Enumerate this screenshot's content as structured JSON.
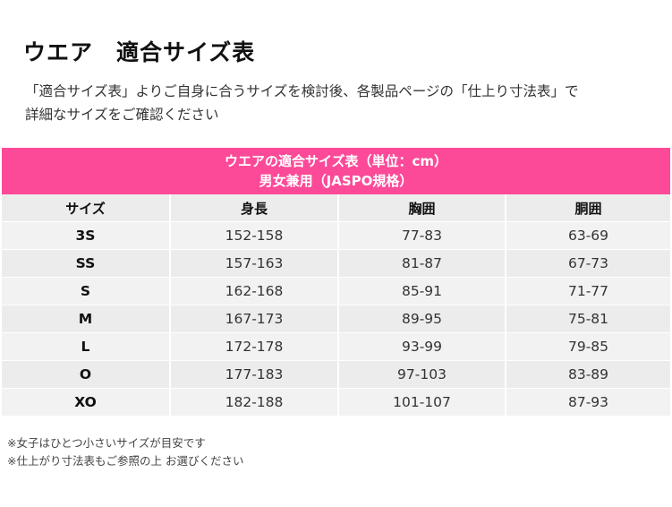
{
  "title": "ウエア　適合サイズ表",
  "intro": [
    "「適合サイズ表」よりご自身に合うサイズを検討後、各製品ページの「仕上り寸法表」で",
    "詳細なサイズをご確認ください"
  ],
  "table": {
    "caption": "ウエアの適合サイズ表（単位：cm）",
    "subcaption": "男女兼用（JASPO規格）",
    "headers": [
      "サイズ",
      "身長",
      "胸囲",
      "胴囲"
    ],
    "rows": [
      [
        "3S",
        "152-158",
        "77-83",
        "63-69"
      ],
      [
        "SS",
        "157-163",
        "81-87",
        "67-73"
      ],
      [
        "S",
        "162-168",
        "85-91",
        "71-77"
      ],
      [
        "M",
        "167-173",
        "89-95",
        "75-81"
      ],
      [
        "L",
        "172-178",
        "93-99",
        "79-85"
      ],
      [
        "O",
        "177-183",
        "97-103",
        "83-89"
      ],
      [
        "XO",
        "182-188",
        "101-107",
        "87-93"
      ]
    ],
    "accent_color": "#fc4a98"
  },
  "notes": [
    "※女子はひとつ小さいサイズが目安です",
    "※仕上がり寸法表もご参照の上 お選びください"
  ]
}
